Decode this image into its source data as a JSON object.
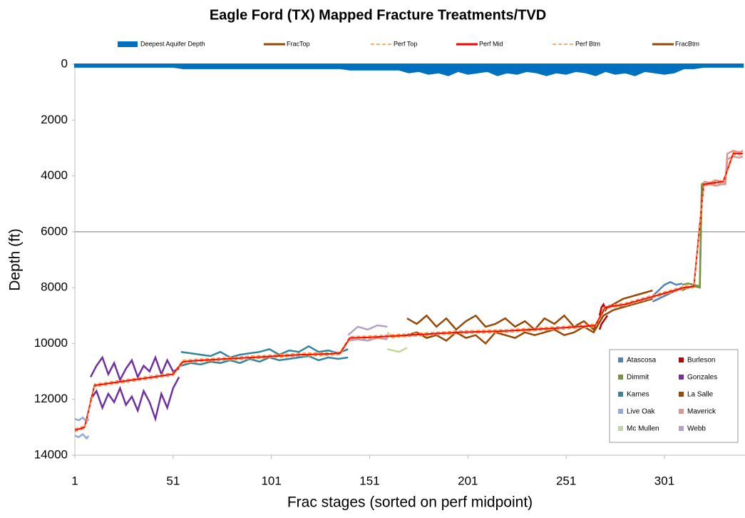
{
  "chart_data": {
    "type": "line",
    "title": "Eagle Ford (TX) Mapped Fracture Treatments/TVD",
    "x_label": "Frac stages (sorted on perf midpoint)",
    "y_label": "Depth (ft)",
    "xlim": [
      1,
      342
    ],
    "xticks": [
      1,
      51,
      101,
      151,
      201,
      251,
      301
    ],
    "ylim": [
      0,
      14000
    ],
    "yticks": [
      0,
      2000,
      4000,
      6000,
      8000,
      10000,
      12000,
      14000
    ],
    "y_inverted": true,
    "reference_line": 6000,
    "x": [
      1,
      6,
      11,
      16,
      21,
      26,
      31,
      36,
      41,
      46,
      51,
      56,
      61,
      66,
      71,
      76,
      81,
      86,
      91,
      96,
      101,
      106,
      111,
      116,
      121,
      126,
      131,
      136,
      141,
      146,
      151,
      156,
      161,
      166,
      171,
      176,
      181,
      186,
      191,
      196,
      201,
      206,
      211,
      216,
      221,
      226,
      231,
      236,
      241,
      246,
      251,
      256,
      261,
      266,
      271,
      276,
      281,
      286,
      291,
      296,
      301,
      306,
      311,
      316,
      321,
      326,
      331,
      336,
      341
    ],
    "series": [
      {
        "name": "Deepest Aquifer Depth",
        "color": "#0070c0",
        "style": "area",
        "values": [
          100,
          100,
          100,
          100,
          100,
          100,
          100,
          100,
          100,
          100,
          100,
          150,
          150,
          150,
          150,
          150,
          150,
          150,
          150,
          150,
          150,
          150,
          150,
          150,
          150,
          150,
          150,
          150,
          200,
          200,
          200,
          200,
          200,
          200,
          300,
          250,
          350,
          300,
          400,
          250,
          350,
          300,
          250,
          400,
          300,
          350,
          250,
          300,
          400,
          300,
          350,
          250,
          300,
          400,
          250,
          350,
          300,
          400,
          250,
          300,
          350,
          300,
          150,
          150,
          100,
          100,
          100,
          100,
          100
        ]
      },
      {
        "name": "FracTop",
        "color": "#974706",
        "style": "solid"
      },
      {
        "name": "Perf Top",
        "color": "#f79646",
        "style": "dashed",
        "values": [
          13050,
          12950,
          11450,
          11400,
          11350,
          11300,
          11250,
          11200,
          11150,
          11100,
          11050,
          10600,
          10570,
          10550,
          10530,
          10510,
          10490,
          10470,
          10450,
          10430,
          10410,
          10390,
          10370,
          10350,
          10340,
          10330,
          10320,
          10300,
          9750,
          9740,
          9730,
          9710,
          9690,
          9670,
          9650,
          9630,
          9610,
          9590,
          9570,
          9550,
          9540,
          9530,
          9520,
          9510,
          9500,
          9480,
          9460,
          9440,
          9420,
          9400,
          9380,
          9350,
          9330,
          9300,
          8650,
          8600,
          8550,
          8450,
          8350,
          8250,
          8150,
          8050,
          7950,
          7900,
          4250,
          4200,
          4150,
          3150,
          3150
        ]
      },
      {
        "name": "Perf Mid",
        "color": "#ff0000",
        "style": "solid",
        "values": [
          13100,
          13000,
          11500,
          11450,
          11400,
          11350,
          11300,
          11250,
          11200,
          11150,
          11100,
          10650,
          10620,
          10600,
          10580,
          10560,
          10540,
          10520,
          10500,
          10480,
          10460,
          10440,
          10420,
          10400,
          10390,
          10380,
          10370,
          10350,
          9800,
          9790,
          9780,
          9760,
          9740,
          9720,
          9700,
          9680,
          9660,
          9640,
          9620,
          9600,
          9590,
          9580,
          9570,
          9560,
          9550,
          9530,
          9510,
          9490,
          9470,
          9450,
          9430,
          9400,
          9380,
          9350,
          8700,
          8650,
          8600,
          8500,
          8400,
          8300,
          8200,
          8100,
          8000,
          7950,
          4300,
          4250,
          4200,
          3200,
          3200
        ]
      },
      {
        "name": "Perf Btm",
        "color": "#f79646",
        "style": "dashed",
        "values": [
          13150,
          13050,
          11550,
          11500,
          11450,
          11400,
          11350,
          11300,
          11250,
          11200,
          11150,
          10700,
          10670,
          10650,
          10630,
          10610,
          10590,
          10570,
          10550,
          10530,
          10510,
          10490,
          10470,
          10450,
          10440,
          10430,
          10420,
          10400,
          9850,
          9840,
          9830,
          9810,
          9790,
          9770,
          9750,
          9730,
          9710,
          9690,
          9670,
          9650,
          9640,
          9630,
          9620,
          9610,
          9600,
          9580,
          9560,
          9540,
          9520,
          9500,
          9480,
          9450,
          9430,
          9400,
          8750,
          8700,
          8650,
          8550,
          8450,
          8350,
          8250,
          8150,
          8050,
          8000,
          4350,
          4300,
          4250,
          3250,
          3250
        ]
      },
      {
        "name": "FracBtm",
        "color": "#974706",
        "style": "solid"
      }
    ],
    "counties": [
      {
        "name": "Atascosa",
        "color": "#4f81bd",
        "x": [
          295,
          298,
          301,
          304,
          307,
          310
        ],
        "frac_top": [
          8300,
          8100,
          7900,
          7800,
          7900,
          7850
        ],
        "frac_btm": [
          8500,
          8400,
          8300,
          8200,
          8100,
          8000
        ]
      },
      {
        "name": "Burleson",
        "color": "#c00000",
        "x": [
          268,
          269,
          270,
          271,
          272
        ],
        "frac_top": [
          9000,
          8700,
          8600,
          8800,
          8700
        ],
        "frac_btm": [
          9500,
          9300,
          9200,
          9100,
          9000
        ]
      },
      {
        "name": "Dimmit",
        "color": "#77933c",
        "x": [
          310,
          313,
          316,
          319,
          320,
          321
        ],
        "frac_top": [
          7900,
          7850,
          7900,
          7950,
          4300,
          4250
        ],
        "frac_btm": [
          8100,
          8000,
          7950,
          8000,
          4400,
          4350
        ]
      },
      {
        "name": "Gonzales",
        "color": "#7030a0",
        "x": [
          9,
          12,
          15,
          18,
          21,
          24,
          27,
          30,
          33,
          36,
          39,
          42,
          45,
          48,
          51,
          54
        ],
        "frac_top": [
          11200,
          10800,
          10500,
          11100,
          10700,
          11300,
          10900,
          10600,
          11200,
          10800,
          11000,
          10500,
          11100,
          10600,
          11000,
          10900
        ],
        "frac_btm": [
          12000,
          11700,
          12300,
          11800,
          12100,
          11600,
          12200,
          11900,
          12400,
          11700,
          12100,
          12700,
          11800,
          12300,
          11600,
          11200
        ]
      },
      {
        "name": "Karnes",
        "color": "#31859c",
        "x": [
          55,
          60,
          65,
          70,
          75,
          80,
          85,
          90,
          95,
          100,
          105,
          110,
          115,
          120,
          125,
          130,
          135,
          140
        ],
        "frac_top": [
          10300,
          10350,
          10400,
          10450,
          10300,
          10500,
          10400,
          10350,
          10300,
          10200,
          10400,
          10250,
          10300,
          10100,
          10300,
          10250,
          10350,
          10200
        ],
        "frac_btm": [
          10800,
          10700,
          10750,
          10650,
          10700,
          10600,
          10700,
          10550,
          10650,
          10500,
          10600,
          10550,
          10500,
          10450,
          10600,
          10500,
          10550,
          10500
        ]
      },
      {
        "name": "La Salle",
        "color": "#974706",
        "x": [
          170,
          175,
          180,
          185,
          190,
          195,
          200,
          205,
          210,
          215,
          220,
          225,
          230,
          235,
          240,
          245,
          250,
          255,
          260,
          265,
          270,
          275,
          280,
          285,
          290,
          295
        ],
        "frac_top": [
          9100,
          9300,
          9000,
          9400,
          9100,
          9500,
          9200,
          9000,
          9400,
          9300,
          9100,
          9400,
          9200,
          9500,
          9100,
          9300,
          9000,
          9400,
          9200,
          9500,
          8800,
          8600,
          8400,
          8300,
          8200,
          8100
        ],
        "frac_btm": [
          9700,
          9600,
          9800,
          9700,
          9900,
          9600,
          9800,
          9700,
          10000,
          9600,
          9700,
          9800,
          9600,
          9700,
          9600,
          9500,
          9700,
          9600,
          9400,
          9600,
          9000,
          8800,
          8700,
          8600,
          8500,
          8400
        ]
      },
      {
        "name": "Live Oak",
        "color": "#8faadc",
        "x": [
          1,
          3,
          5,
          7,
          8
        ],
        "frac_top": [
          12700,
          12750,
          12650,
          12800,
          12700
        ],
        "frac_btm": [
          13300,
          13350,
          13250,
          13400,
          13300
        ]
      },
      {
        "name": "Maverick",
        "color": "#d99694",
        "x": [
          321,
          324,
          327,
          330,
          332,
          333,
          336,
          339,
          341
        ],
        "frac_top": [
          4200,
          4250,
          4150,
          4200,
          4250,
          3200,
          3100,
          3150,
          3100
        ],
        "frac_btm": [
          4350,
          4300,
          4350,
          4300,
          4300,
          3400,
          3300,
          3350,
          3300
        ]
      },
      {
        "name": "Mc Mullen",
        "color": "#c3d69b",
        "x": [
          160,
          163,
          166,
          170
        ],
        "frac_top": [
          9600,
          9800,
          9700,
          9750
        ],
        "frac_btm": [
          10200,
          10250,
          10300,
          10150
        ]
      },
      {
        "name": "Webb",
        "color": "#b3a2c7",
        "x": [
          140,
          145,
          150,
          155,
          160
        ],
        "frac_top": [
          9700,
          9400,
          9500,
          9350,
          9400
        ],
        "frac_btm": [
          9900,
          9850,
          9900,
          9800,
          9850
        ]
      }
    ]
  }
}
